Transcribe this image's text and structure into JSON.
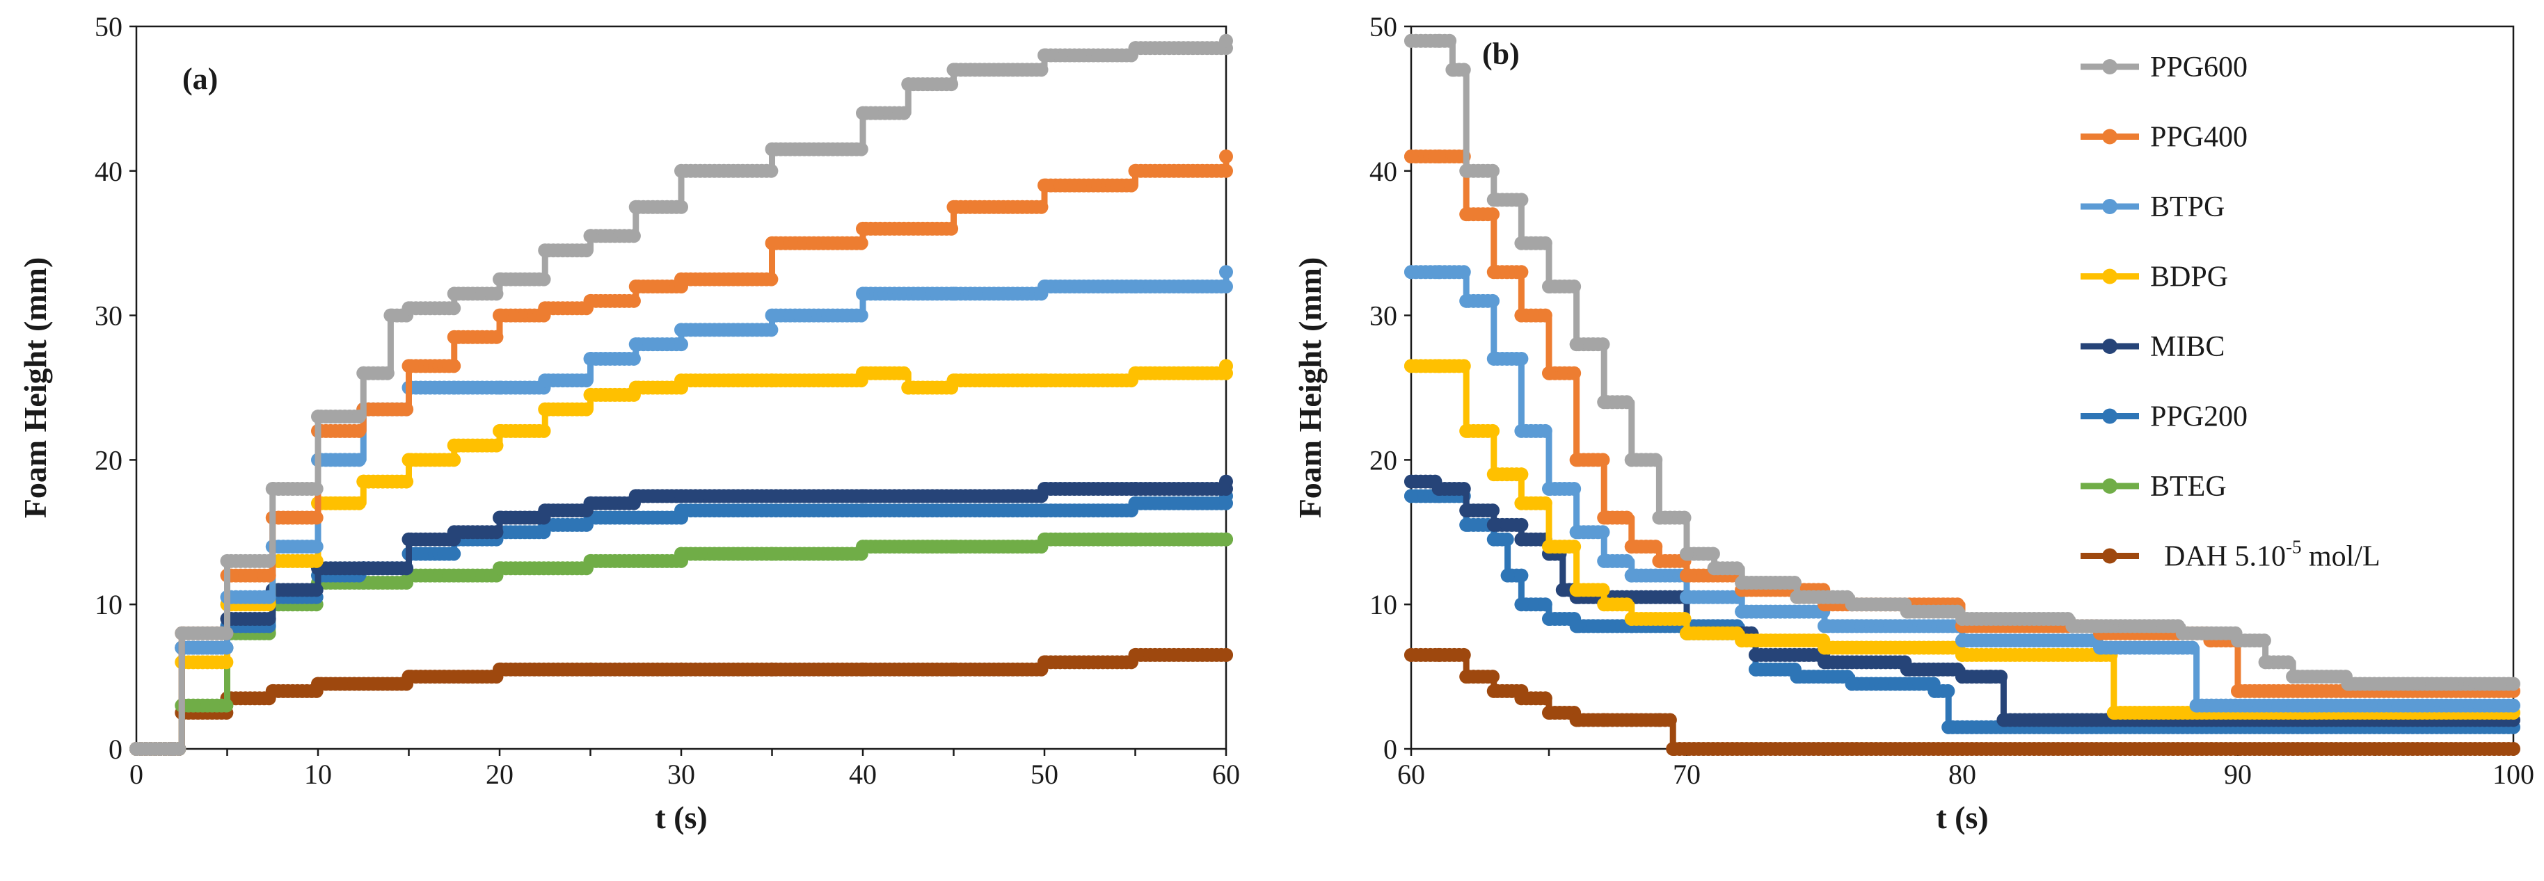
{
  "chart_data": [
    {
      "panel": "(a)",
      "type": "line",
      "xlabel": "t (s)",
      "ylabel": "Foam Height (mm)",
      "xlim": [
        0,
        60
      ],
      "ylim": [
        0,
        50
      ],
      "xticks": [
        0,
        10,
        20,
        30,
        40,
        50,
        60
      ],
      "yticks": [
        0,
        10,
        20,
        30,
        40,
        50
      ],
      "grid": false,
      "series": [
        {
          "name": "PPG600",
          "color": "#A5A5A5",
          "x": [
            0,
            2,
            2.5,
            5,
            7.5,
            10,
            12.5,
            14,
            15,
            17.5,
            20,
            22.5,
            25,
            27.5,
            30,
            35,
            40,
            42.5,
            45,
            50,
            55,
            60
          ],
          "y": [
            0,
            0,
            8,
            13,
            18,
            23,
            26,
            30,
            30.5,
            31.5,
            32.5,
            34.5,
            35.5,
            37.5,
            40,
            41.5,
            44,
            46,
            47,
            48,
            48.5,
            49
          ]
        },
        {
          "name": "PPG400",
          "color": "#ED7D31",
          "x": [
            0,
            2,
            2.5,
            5,
            7.5,
            10,
            12.5,
            15,
            17.5,
            20,
            22.5,
            25,
            27.5,
            30,
            35,
            40,
            45,
            50,
            55,
            60
          ],
          "y": [
            0,
            0,
            8,
            12,
            16,
            22,
            23.5,
            26.5,
            28.5,
            30,
            30.5,
            31,
            32,
            32.5,
            35,
            36,
            37.5,
            39,
            40,
            41
          ]
        },
        {
          "name": "BTPG",
          "color": "#5B9BD5",
          "x": [
            0,
            2,
            2.5,
            5,
            7.5,
            10,
            12.5,
            15,
            17.5,
            20,
            22.5,
            25,
            27.5,
            30,
            35,
            40,
            45,
            50,
            55,
            60
          ],
          "y": [
            0,
            0,
            7,
            10.5,
            14,
            20,
            23.5,
            25,
            25,
            25,
            25.5,
            27,
            28,
            29,
            30,
            31.5,
            31.5,
            32,
            32,
            33
          ]
        },
        {
          "name": "BDPG",
          "color": "#FFC000",
          "x": [
            0,
            2,
            2.5,
            5,
            7.5,
            10,
            12.5,
            15,
            17.5,
            20,
            22.5,
            25,
            27.5,
            30,
            35,
            40,
            42.5,
            45,
            50,
            55,
            60
          ],
          "y": [
            0,
            0,
            6,
            10,
            13,
            17,
            18.5,
            20,
            21,
            22,
            23.5,
            24.5,
            25,
            25.5,
            25.5,
            26,
            25,
            25.5,
            25.5,
            26,
            26.5
          ]
        },
        {
          "name": "MIBC",
          "color": "#264478",
          "x": [
            0,
            2,
            2.5,
            5,
            7.5,
            10,
            12.5,
            15,
            17.5,
            20,
            22.5,
            25,
            27.5,
            30,
            40,
            50,
            55,
            60
          ],
          "y": [
            0,
            0,
            7,
            9,
            11,
            12.5,
            12.5,
            14.5,
            15,
            16,
            16.5,
            17,
            17.5,
            17.5,
            17.5,
            18,
            18,
            18.5
          ]
        },
        {
          "name": "PPG200",
          "color": "#2E75B6",
          "x": [
            0,
            2,
            2.5,
            5,
            7.5,
            10,
            12.5,
            15,
            17.5,
            20,
            22.5,
            25,
            30,
            40,
            50,
            55,
            60
          ],
          "y": [
            0,
            0,
            7,
            8.5,
            10.5,
            12,
            12.5,
            13.5,
            14.5,
            15,
            15.5,
            16,
            16.5,
            16.5,
            16.5,
            17,
            17.5
          ]
        },
        {
          "name": "BTEG",
          "color": "#70AD47",
          "x": [
            0,
            2,
            2.5,
            5,
            7.5,
            10,
            12.5,
            15,
            20,
            25,
            30,
            35,
            40,
            45,
            50,
            55,
            60
          ],
          "y": [
            0,
            0,
            3,
            8,
            10,
            11.5,
            11.5,
            12,
            12.5,
            13,
            13.5,
            13.5,
            14,
            14,
            14.5,
            14.5,
            14.5
          ]
        },
        {
          "name": "DAH 5.10-5 mol/L",
          "color": "#9E480E",
          "x": [
            0,
            2,
            2.5,
            5,
            7.5,
            10,
            15,
            20,
            25,
            30,
            35,
            40,
            45,
            50,
            55,
            60
          ],
          "y": [
            0,
            0,
            2.5,
            3.5,
            4,
            4.5,
            5,
            5.5,
            5.5,
            5.5,
            5.5,
            5.5,
            5.5,
            6,
            6.5,
            6.5
          ]
        }
      ]
    },
    {
      "panel": "(b)",
      "type": "line",
      "xlabel": "t (s)",
      "ylabel": "Foam Height (mm)",
      "xlim": [
        60,
        100
      ],
      "ylim": [
        0,
        50
      ],
      "xticks": [
        60,
        70,
        80,
        90,
        100
      ],
      "yticks": [
        0,
        10,
        20,
        30,
        40,
        50
      ],
      "grid": false,
      "legend_position": "right",
      "series": [
        {
          "name": "PPG600",
          "color": "#A5A5A5",
          "x": [
            60,
            61,
            61.5,
            62,
            63,
            64,
            65,
            66,
            67,
            68,
            69,
            70,
            71,
            72,
            74,
            76,
            78,
            80,
            84,
            88,
            90,
            91,
            92,
            94,
            100
          ],
          "y": [
            49,
            49,
            47,
            40,
            38,
            35,
            32,
            28,
            24,
            20,
            16,
            13.5,
            12.5,
            11.5,
            10.5,
            10,
            9.5,
            9,
            8.5,
            8,
            7.5,
            6,
            5,
            4.5,
            4.5
          ]
        },
        {
          "name": "PPG400",
          "color": "#ED7D31",
          "x": [
            60,
            61,
            62,
            63,
            64,
            65,
            66,
            67,
            68,
            69,
            70,
            72,
            75,
            80,
            85,
            89,
            90,
            100
          ],
          "y": [
            41,
            41,
            37,
            33,
            30,
            26,
            20,
            16,
            14,
            13,
            12,
            11,
            10,
            8.5,
            8,
            7.5,
            4,
            4
          ]
        },
        {
          "name": "BTPG",
          "color": "#5B9BD5",
          "x": [
            60,
            61,
            62,
            63,
            64,
            65,
            66,
            67,
            68,
            70,
            72,
            75,
            80,
            85,
            88,
            88.5,
            100
          ],
          "y": [
            33,
            33,
            31,
            27,
            22,
            18,
            15,
            13,
            12,
            10.5,
            9.5,
            8.5,
            7.5,
            7,
            7,
            3,
            3
          ]
        },
        {
          "name": "BDPG",
          "color": "#FFC000",
          "x": [
            60,
            61,
            62,
            63,
            64,
            65,
            66,
            67,
            68,
            70,
            72,
            75,
            80,
            85,
            85.5,
            100
          ],
          "y": [
            26.5,
            26.5,
            22,
            19,
            17,
            14,
            11,
            10,
            9,
            8,
            7.5,
            7,
            6.5,
            6.5,
            2.5,
            2.5
          ]
        },
        {
          "name": "MIBC",
          "color": "#264478",
          "x": [
            60,
            61,
            62,
            63,
            64,
            65,
            65.5,
            66,
            70,
            72,
            72.5,
            75,
            78,
            80,
            81,
            81.5,
            100
          ],
          "y": [
            18.5,
            18,
            16.5,
            15.5,
            14.5,
            13.5,
            11,
            10.5,
            8,
            8,
            6.5,
            6,
            5.5,
            5,
            5,
            2,
            2
          ]
        },
        {
          "name": "PPG200",
          "color": "#2E75B6",
          "x": [
            60,
            61,
            62,
            63,
            63.5,
            64,
            65,
            66,
            68,
            70,
            72,
            72.5,
            74,
            76,
            79,
            79.5,
            100
          ],
          "y": [
            17.5,
            17.5,
            15.5,
            14.5,
            12,
            10,
            9,
            8.5,
            8.5,
            8.5,
            8,
            5.5,
            5,
            4.5,
            4,
            1.5,
            1.5
          ]
        },
        {
          "name": "BTEG",
          "color": "#70AD47",
          "x": [],
          "y": []
        },
        {
          "name": "DAH 5.10-5 mol/L",
          "color": "#9E480E",
          "x": [
            60,
            61,
            62,
            63,
            64,
            65,
            66,
            67,
            68,
            69,
            69.5,
            100
          ],
          "y": [
            6.5,
            6.5,
            5,
            4,
            3.5,
            2.5,
            2,
            2,
            2,
            2,
            0,
            0
          ]
        }
      ]
    }
  ],
  "legend": {
    "items": [
      {
        "label": "PPG600",
        "color": "#A5A5A5"
      },
      {
        "label": "PPG400",
        "color": "#ED7D31"
      },
      {
        "label": "BTPG",
        "color": "#5B9BD5"
      },
      {
        "label": "BDPG",
        "color": "#FFC000"
      },
      {
        "label": "MIBC",
        "color": "#264478"
      },
      {
        "label": "PPG200",
        "color": "#2E75B6"
      },
      {
        "label": "BTEG",
        "color": "#70AD47"
      },
      {
        "label": "DAH 5.10",
        "sup": "-5",
        "after": " mol/L",
        "color": "#9E480E"
      }
    ]
  }
}
